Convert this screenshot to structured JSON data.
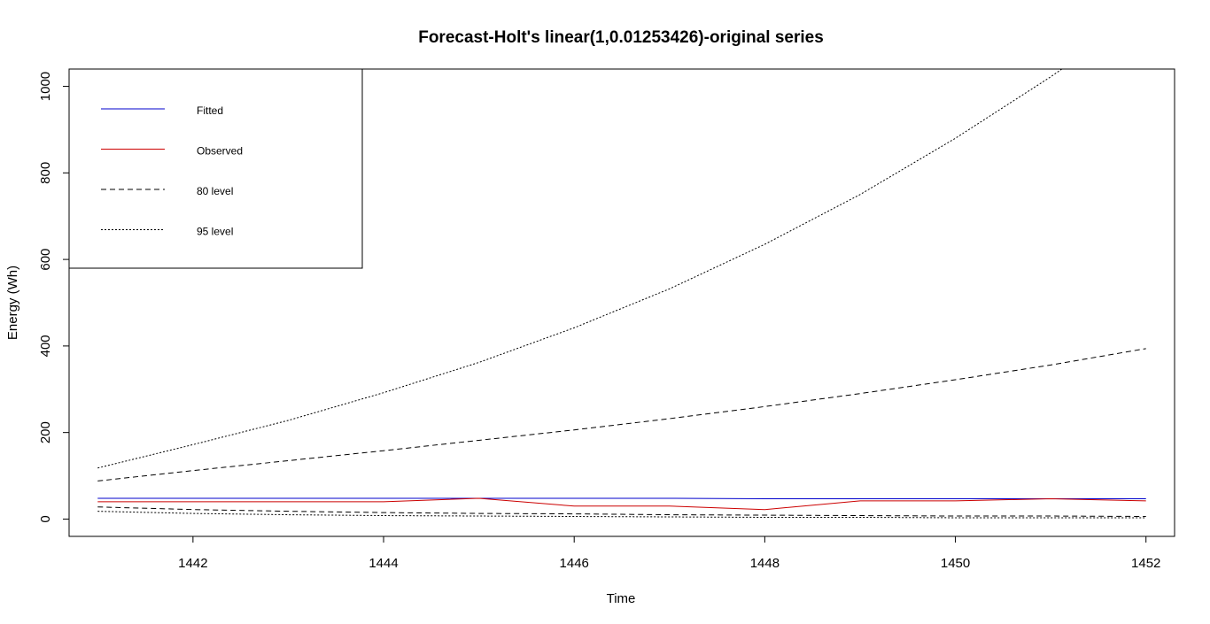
{
  "chart_data": {
    "type": "line",
    "title": "Forecast-Holt's linear(1,0.01253426)-original series",
    "xlabel": "Time",
    "ylabel": "Energy (Wh)",
    "xlim": [
      1440.7,
      1452.3
    ],
    "ylim": [
      -40,
      1040
    ],
    "x_ticks": [
      1442,
      1444,
      1446,
      1448,
      1450,
      1452
    ],
    "y_ticks": [
      0,
      200,
      400,
      600,
      800,
      1000
    ],
    "legend_position": "top-left",
    "x": [
      1441,
      1442,
      1443,
      1444,
      1445,
      1446,
      1447,
      1448,
      1449,
      1450,
      1451,
      1452
    ],
    "series": [
      {
        "name": "Fitted",
        "color": "#0000cc",
        "dash": "solid",
        "values": [
          48,
          48,
          48,
          48,
          48,
          48,
          48,
          47,
          47,
          47,
          47,
          47
        ]
      },
      {
        "name": "Observed",
        "color": "#cc0000",
        "dash": "solid",
        "values": [
          40,
          40,
          40,
          40,
          48,
          30,
          30,
          22,
          42,
          42,
          47,
          42
        ]
      },
      {
        "name": "80 level",
        "color": "#000000",
        "dash": "6,4",
        "upper": [
          88,
          112,
          135,
          158,
          182,
          206,
          232,
          260,
          290,
          322,
          356,
          394
        ],
        "lower": [
          28,
          22,
          18,
          15,
          13,
          12,
          10,
          9,
          8,
          7,
          7,
          6
        ]
      },
      {
        "name": "95 level",
        "color": "#000000",
        "dash": "2,2",
        "upper": [
          118,
          172,
          228,
          292,
          362,
          442,
          532,
          635,
          750,
          880,
          1022,
          1175
        ],
        "lower": [
          18,
          13,
          10,
          8,
          7,
          6,
          5,
          4,
          4,
          3,
          3,
          3
        ]
      }
    ]
  }
}
